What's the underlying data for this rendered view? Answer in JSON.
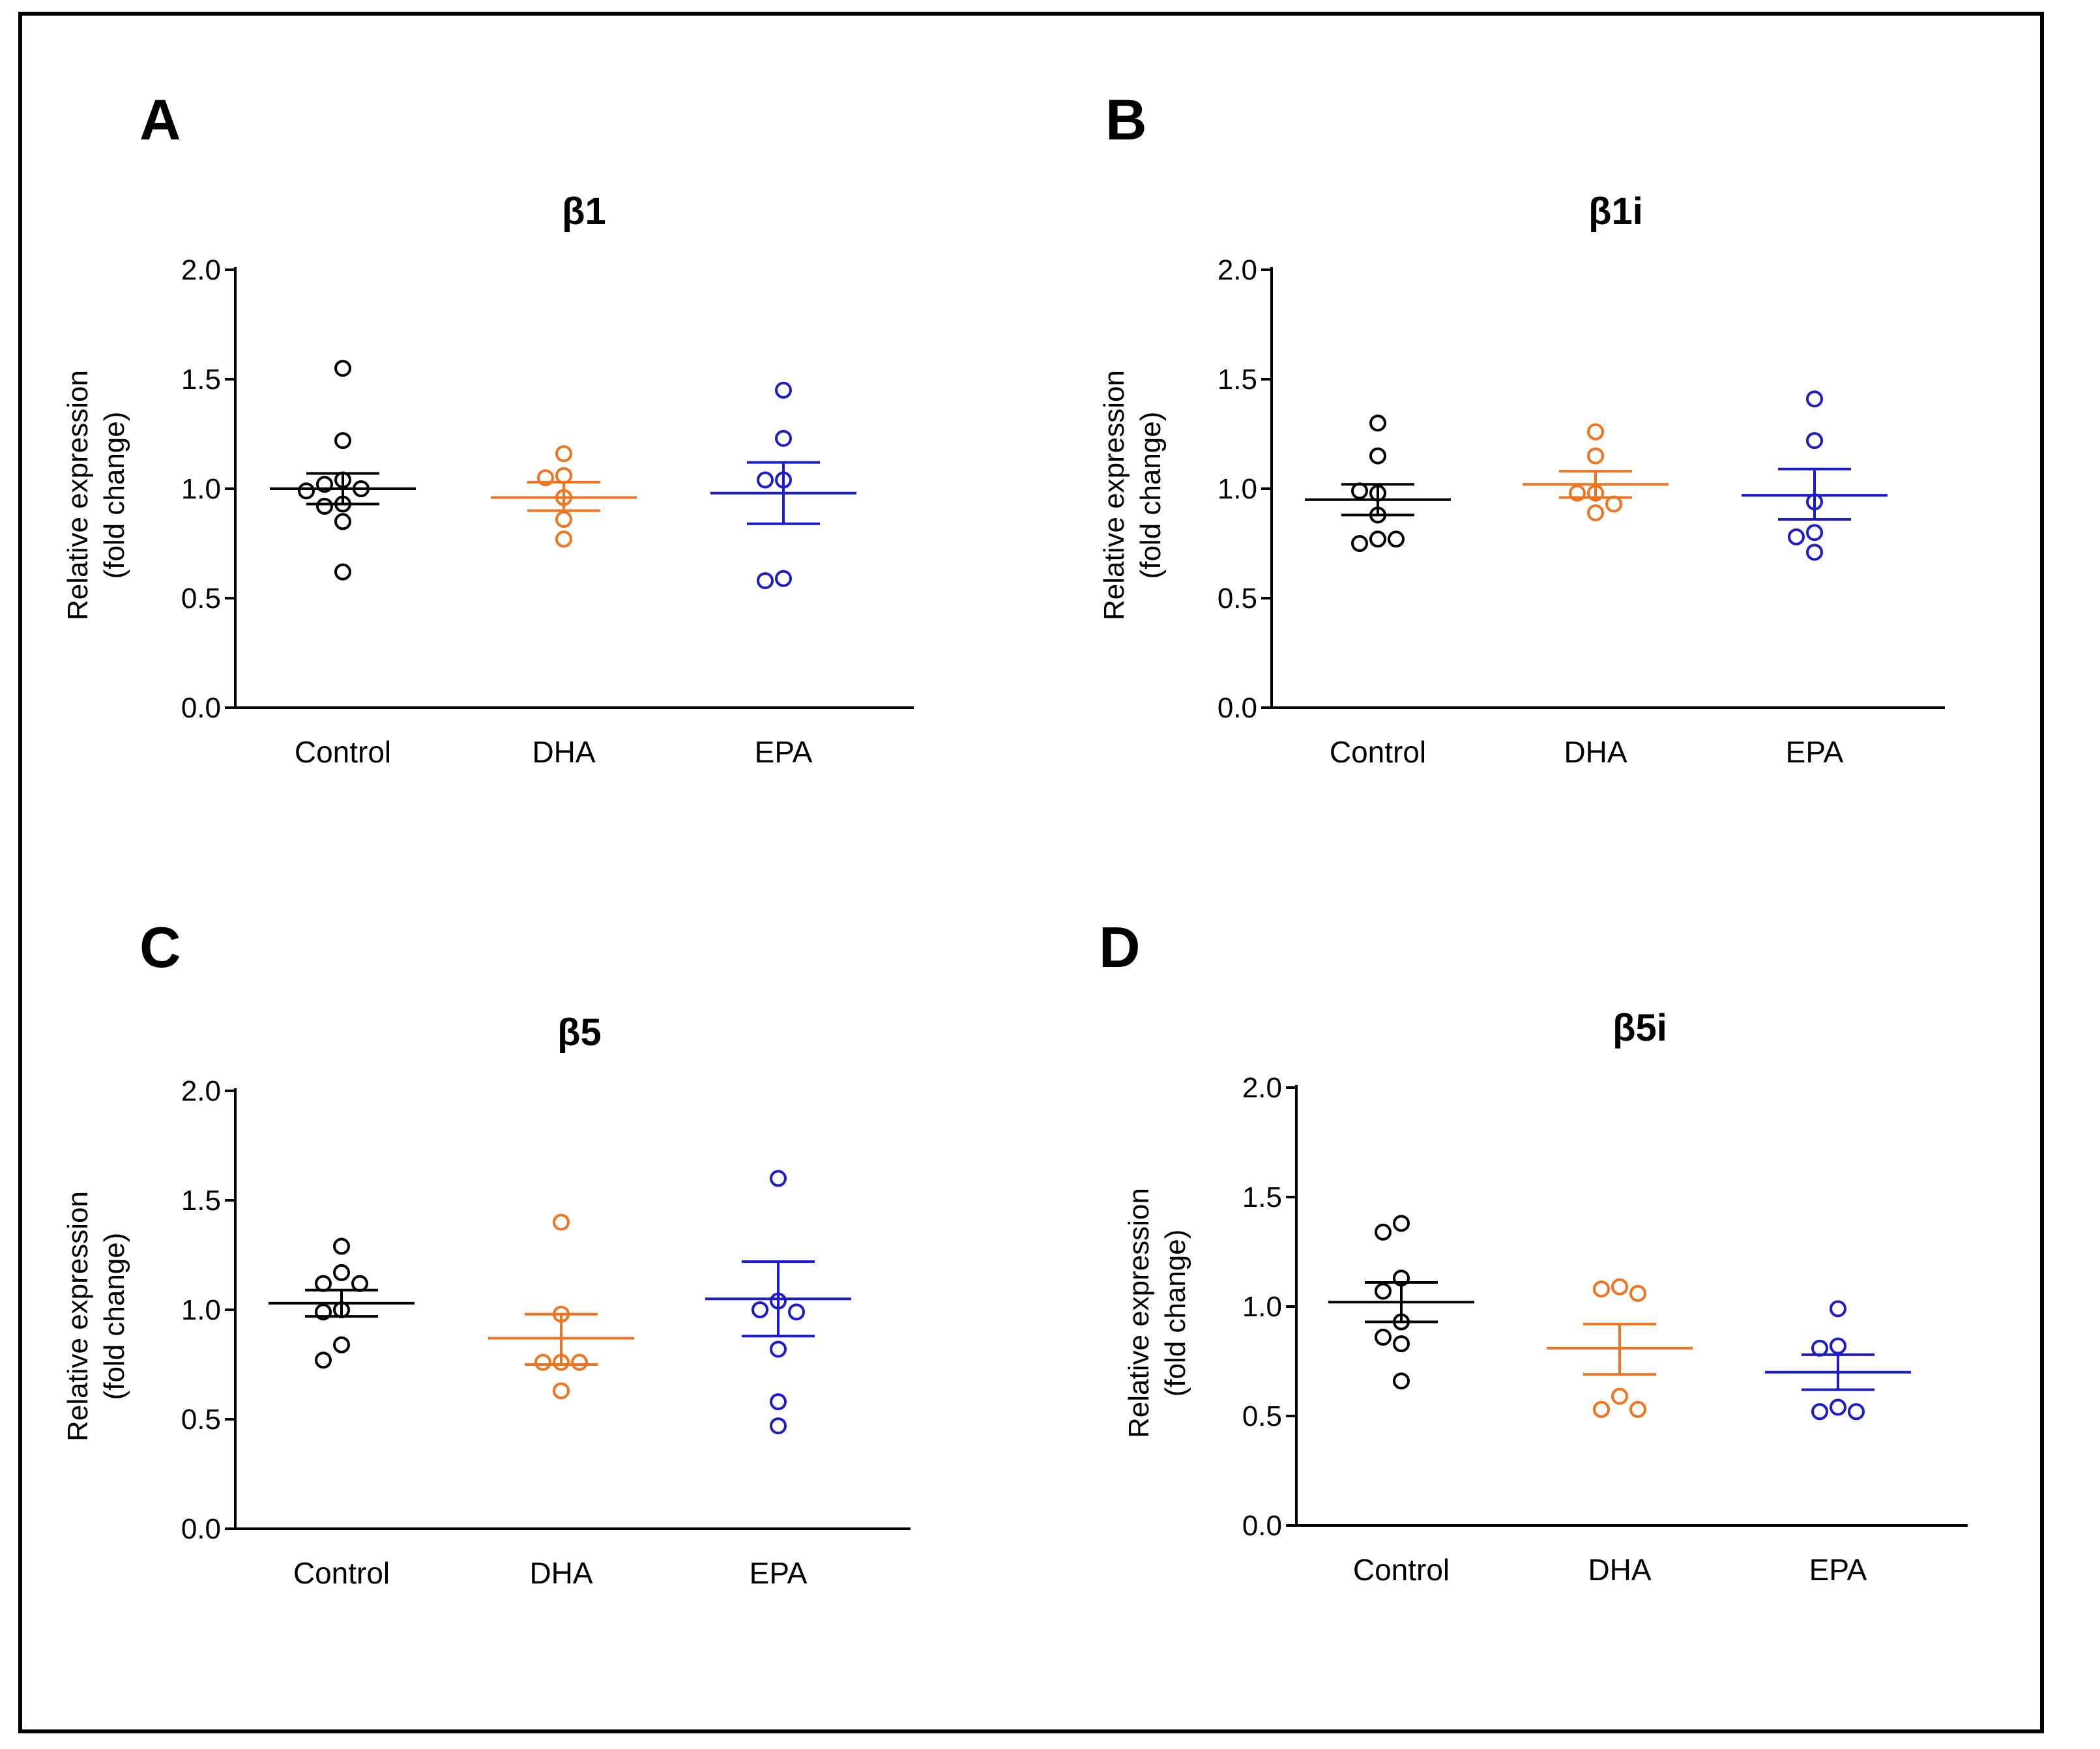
{
  "colors": {
    "Control": "#000000",
    "DHA": "#f07320",
    "EPA": "#1c1cc8"
  },
  "chart_data": [
    {
      "type": "scatter",
      "panel": "A",
      "title": "β1",
      "ylabel": "Relative expression",
      "ylabel2": "(fold change)",
      "ylim": [
        0,
        2.0
      ],
      "yticks": [
        "0.0",
        "0.5",
        "1.0",
        "1.5",
        "2.0"
      ],
      "categories": [
        "Control",
        "DHA",
        "EPA"
      ],
      "series": [
        {
          "name": "Control",
          "mean": 1.0,
          "sem_low": 0.93,
          "sem_high": 1.07,
          "points": [
            1.55,
            1.22,
            1.04,
            1.02,
            1.0,
            0.99,
            0.93,
            0.92,
            0.85,
            0.62
          ]
        },
        {
          "name": "DHA",
          "mean": 0.96,
          "sem_low": 0.9,
          "sem_high": 1.03,
          "points": [
            1.16,
            1.06,
            1.05,
            0.96,
            0.86,
            0.77
          ]
        },
        {
          "name": "EPA",
          "mean": 0.98,
          "sem_low": 0.84,
          "sem_high": 1.12,
          "points": [
            1.45,
            1.23,
            1.04,
            1.04,
            0.59,
            0.58
          ]
        }
      ]
    },
    {
      "type": "scatter",
      "panel": "B",
      "title": "β1i",
      "ylabel": "Relative expression",
      "ylabel2": "(fold change)",
      "ylim": [
        0,
        2.0
      ],
      "yticks": [
        "0.0",
        "0.5",
        "1.0",
        "1.5",
        "2.0"
      ],
      "categories": [
        "Control",
        "DHA",
        "EPA"
      ],
      "series": [
        {
          "name": "Control",
          "mean": 0.95,
          "sem_low": 0.88,
          "sem_high": 1.02,
          "points": [
            1.3,
            1.15,
            0.98,
            0.99,
            0.88,
            0.77,
            0.75,
            0.77
          ]
        },
        {
          "name": "DHA",
          "mean": 1.02,
          "sem_low": 0.96,
          "sem_high": 1.08,
          "points": [
            1.26,
            1.15,
            0.98,
            0.98,
            0.93,
            0.89
          ]
        },
        {
          "name": "EPA",
          "mean": 0.97,
          "sem_low": 0.86,
          "sem_high": 1.09,
          "points": [
            1.41,
            1.22,
            0.94,
            0.8,
            0.78,
            0.71
          ]
        }
      ]
    },
    {
      "type": "scatter",
      "panel": "C",
      "title": "β5",
      "ylabel": "Relative expression",
      "ylabel2": "(fold change)",
      "ylim": [
        0,
        2.0
      ],
      "yticks": [
        "0.0",
        "0.5",
        "1.0",
        "1.5",
        "2.0"
      ],
      "categories": [
        "Control",
        "DHA",
        "EPA"
      ],
      "series": [
        {
          "name": "Control",
          "mean": 1.03,
          "sem_low": 0.97,
          "sem_high": 1.09,
          "points": [
            1.29,
            1.17,
            1.12,
            1.12,
            1.0,
            0.99,
            0.84,
            0.77
          ]
        },
        {
          "name": "DHA",
          "mean": 0.87,
          "sem_low": 0.75,
          "sem_high": 0.98,
          "points": [
            1.4,
            0.98,
            0.76,
            0.76,
            0.76,
            0.63
          ]
        },
        {
          "name": "EPA",
          "mean": 1.05,
          "sem_low": 0.88,
          "sem_high": 1.22,
          "points": [
            1.6,
            1.04,
            1.0,
            0.99,
            0.82,
            0.58,
            0.47
          ]
        }
      ]
    },
    {
      "type": "scatter",
      "panel": "D",
      "title": "β5i",
      "ylabel": "Relative expression",
      "ylabel2": "(fold change)",
      "ylim": [
        0,
        2.0
      ],
      "yticks": [
        "0.0",
        "0.5",
        "1.0",
        "1.5",
        "2.0"
      ],
      "categories": [
        "Control",
        "DHA",
        "EPA"
      ],
      "series": [
        {
          "name": "Control",
          "mean": 1.02,
          "sem_low": 0.93,
          "sem_high": 1.11,
          "points": [
            1.38,
            1.34,
            1.13,
            1.07,
            0.93,
            0.86,
            0.83,
            0.66
          ]
        },
        {
          "name": "DHA",
          "mean": 0.81,
          "sem_low": 0.69,
          "sem_high": 0.92,
          "points": [
            1.09,
            1.08,
            1.06,
            0.59,
            0.53,
            0.53
          ]
        },
        {
          "name": "EPA",
          "mean": 0.7,
          "sem_low": 0.62,
          "sem_high": 0.78,
          "points": [
            0.99,
            0.82,
            0.81,
            0.54,
            0.52,
            0.52
          ]
        }
      ]
    }
  ]
}
